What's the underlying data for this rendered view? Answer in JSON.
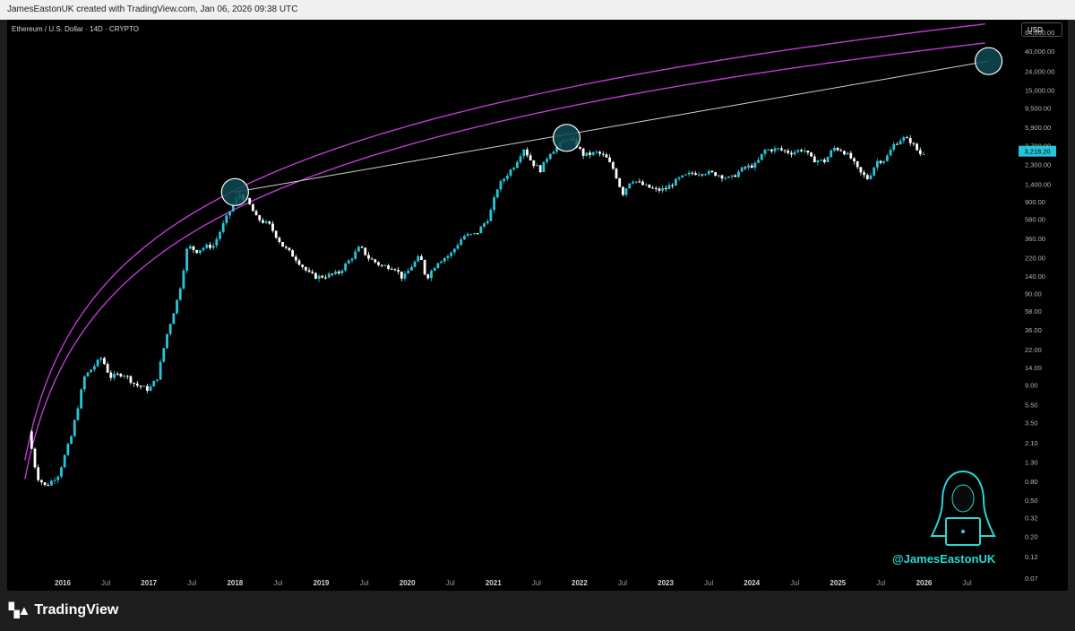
{
  "credit": "JamesEastonUK created with TradingView.com, Jan 06, 2026 09:38 UTC",
  "symbol_title": "Ethereum / U.S. Dollar · 14D · CRYPTO",
  "currency": "USD",
  "price_label": "3,218.20",
  "watermark": "@JamesEastonUK",
  "brand": "TradingView",
  "colors": {
    "up": "#26c6da",
    "down": "#ffffff",
    "curve": "#c13ad6",
    "trendline": "#d0d0d0",
    "circle_fill": "#0f4a55",
    "price_label_bg": "#26c6da"
  },
  "chart_data": {
    "type": "candlestick",
    "scale": "log",
    "x_range": [
      2015.5,
      2026.9
    ],
    "y_range": [
      0.07,
      64000
    ],
    "y_ticks": [
      "64,000.00",
      "40,000.00",
      "24,000.00",
      "15,000.00",
      "9,500.00",
      "5,900.00",
      "3,700.00",
      "2,300.00",
      "1,400.00",
      "900.00",
      "580.00",
      "360.00",
      "220.00",
      "140.00",
      "90.00",
      "58.00",
      "36.00",
      "22.00",
      "14.00",
      "9.00",
      "5.50",
      "3.50",
      "2.10",
      "1.30",
      "0.80",
      "0.50",
      "0.32",
      "0.20",
      "0.12",
      "0.07"
    ],
    "x_ticks": [
      {
        "label": "2016",
        "t": 2016.0,
        "bold": true
      },
      {
        "label": "Jul",
        "t": 2016.5
      },
      {
        "label": "2017",
        "t": 2017.0,
        "bold": true
      },
      {
        "label": "Jul",
        "t": 2017.5
      },
      {
        "label": "2018",
        "t": 2018.0,
        "bold": true
      },
      {
        "label": "Jul",
        "t": 2018.5
      },
      {
        "label": "2019",
        "t": 2019.0,
        "bold": true
      },
      {
        "label": "Jul",
        "t": 2019.5
      },
      {
        "label": "2020",
        "t": 2020.0,
        "bold": true
      },
      {
        "label": "Jul",
        "t": 2020.5
      },
      {
        "label": "2021",
        "t": 2021.0,
        "bold": true
      },
      {
        "label": "Jul",
        "t": 2021.5
      },
      {
        "label": "2022",
        "t": 2022.0,
        "bold": true
      },
      {
        "label": "Jul",
        "t": 2022.5
      },
      {
        "label": "2023",
        "t": 2023.0,
        "bold": true
      },
      {
        "label": "Jul",
        "t": 2023.5
      },
      {
        "label": "2024",
        "t": 2024.0,
        "bold": true
      },
      {
        "label": "Jul",
        "t": 2024.5
      },
      {
        "label": "2025",
        "t": 2025.0,
        "bold": true
      },
      {
        "label": "Jul",
        "t": 2025.5
      },
      {
        "label": "2026",
        "t": 2026.0,
        "bold": true
      },
      {
        "label": "Jul",
        "t": 2026.5
      }
    ],
    "last_price": 3218.2,
    "price_path": [
      [
        2015.6,
        2.8
      ],
      [
        2015.7,
        0.9
      ],
      [
        2015.8,
        0.7
      ],
      [
        2015.95,
        0.95
      ],
      [
        2016.1,
        2.5
      ],
      [
        2016.25,
        11
      ],
      [
        2016.35,
        14
      ],
      [
        2016.45,
        18
      ],
      [
        2016.55,
        11
      ],
      [
        2016.7,
        12
      ],
      [
        2016.85,
        9
      ],
      [
        2017.0,
        8
      ],
      [
        2017.1,
        11
      ],
      [
        2017.2,
        30
      ],
      [
        2017.35,
        90
      ],
      [
        2017.45,
        300
      ],
      [
        2017.55,
        260
      ],
      [
        2017.65,
        290
      ],
      [
        2017.75,
        300
      ],
      [
        2017.85,
        480
      ],
      [
        2017.95,
        750
      ],
      [
        2018.05,
        1100
      ],
      [
        2018.15,
        900
      ],
      [
        2018.25,
        600
      ],
      [
        2018.4,
        500
      ],
      [
        2018.55,
        300
      ],
      [
        2018.7,
        220
      ],
      [
        2018.85,
        150
      ],
      [
        2018.95,
        135
      ],
      [
        2019.05,
        140
      ],
      [
        2019.2,
        150
      ],
      [
        2019.35,
        220
      ],
      [
        2019.45,
        290
      ],
      [
        2019.55,
        220
      ],
      [
        2019.7,
        180
      ],
      [
        2019.85,
        175
      ],
      [
        2019.95,
        130
      ],
      [
        2020.05,
        180
      ],
      [
        2020.15,
        230
      ],
      [
        2020.22,
        130
      ],
      [
        2020.35,
        200
      ],
      [
        2020.5,
        240
      ],
      [
        2020.65,
        380
      ],
      [
        2020.8,
        400
      ],
      [
        2020.95,
        620
      ],
      [
        2021.05,
        1300
      ],
      [
        2021.15,
        1750
      ],
      [
        2021.25,
        2300
      ],
      [
        2021.35,
        3500
      ],
      [
        2021.45,
        2400
      ],
      [
        2021.55,
        2000
      ],
      [
        2021.65,
        3100
      ],
      [
        2021.75,
        3600
      ],
      [
        2021.85,
        4500
      ],
      [
        2021.95,
        3900
      ],
      [
        2022.05,
        2900
      ],
      [
        2022.2,
        3100
      ],
      [
        2022.3,
        2800
      ],
      [
        2022.4,
        2000
      ],
      [
        2022.5,
        1100
      ],
      [
        2022.6,
        1600
      ],
      [
        2022.75,
        1350
      ],
      [
        2022.9,
        1200
      ],
      [
        2023.0,
        1250
      ],
      [
        2023.15,
        1600
      ],
      [
        2023.3,
        1850
      ],
      [
        2023.45,
        1900
      ],
      [
        2023.6,
        1800
      ],
      [
        2023.75,
        1600
      ],
      [
        2023.9,
        2100
      ],
      [
        2024.05,
        2300
      ],
      [
        2024.15,
        3300
      ],
      [
        2024.3,
        3400
      ],
      [
        2024.45,
        3100
      ],
      [
        2024.6,
        3400
      ],
      [
        2024.7,
        2600
      ],
      [
        2024.85,
        2500
      ],
      [
        2024.95,
        3500
      ],
      [
        2025.05,
        3300
      ],
      [
        2025.15,
        2700
      ],
      [
        2025.25,
        1900
      ],
      [
        2025.35,
        1600
      ],
      [
        2025.45,
        2500
      ],
      [
        2025.55,
        2600
      ],
      [
        2025.65,
        3800
      ],
      [
        2025.75,
        4500
      ],
      [
        2025.85,
        4100
      ],
      [
        2025.95,
        3000
      ],
      [
        2026.02,
        3218
      ]
    ],
    "annotations": [
      {
        "type": "trendline",
        "from": [
          2018.0,
          1150
        ],
        "to": [
          2026.75,
          31000
        ]
      },
      {
        "type": "circle",
        "at": [
          2018.0,
          1150
        ]
      },
      {
        "type": "circle",
        "at": [
          2021.85,
          4500
        ]
      },
      {
        "type": "circle",
        "at": [
          2026.75,
          31000
        ]
      }
    ]
  }
}
